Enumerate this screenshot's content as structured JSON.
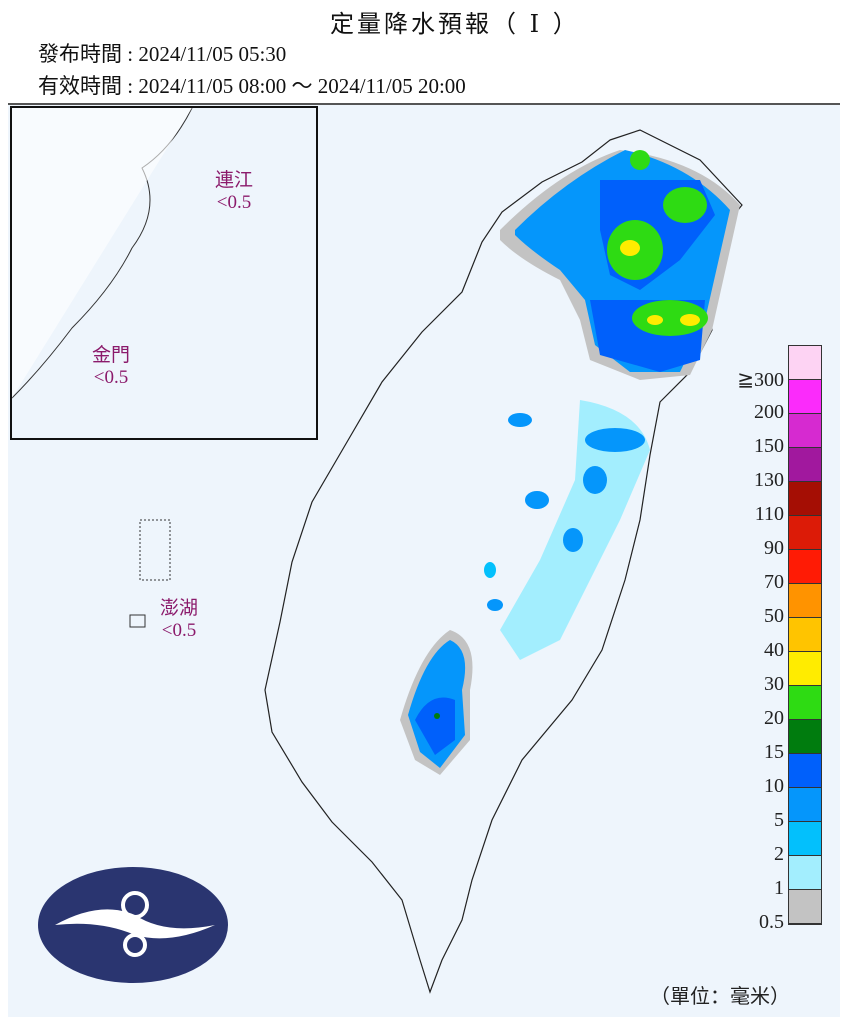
{
  "header": {
    "title": "定量降水預報（ I ）",
    "issue_time": "發布時間 : 2024/11/05 05:30",
    "valid_time": "有效時間 : 2024/11/05 08:00 ～ 2024/11/05 20:00"
  },
  "map": {
    "region_labels": [
      {
        "name": "連江",
        "value": "<0.5"
      },
      {
        "name": "金門",
        "value": "<0.5"
      },
      {
        "name": "澎湖",
        "value": "<0.5"
      }
    ],
    "logo": "central-weather-administration-logo"
  },
  "legend": {
    "unit": "（單位：毫米）",
    "labels": [
      "≧300",
      "200",
      "150",
      "130",
      "110",
      "90",
      "70",
      "50",
      "40",
      "30",
      "20",
      "15",
      "10",
      "5",
      "2",
      "1",
      "0.5"
    ],
    "colors": [
      "#fdd3f3",
      "#fb2bfb",
      "#d62ad0",
      "#a1189e",
      "#a50e04",
      "#dc1b07",
      "#ff1b05",
      "#ff9300",
      "#ffc400",
      "#ffec00",
      "#2edb13",
      "#007c0e",
      "#0060fb",
      "#0596fb",
      "#03c0fc",
      "#a3eefe",
      "#c3c3c3"
    ]
  }
}
